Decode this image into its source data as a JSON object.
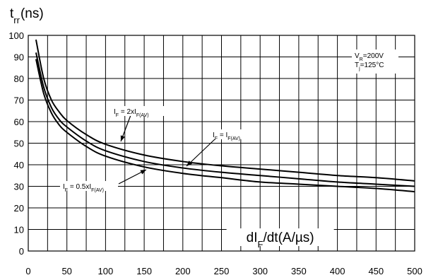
{
  "chart_data": {
    "type": "line",
    "title": "t",
    "title_sub": "rr",
    "title_unit": "(ns)",
    "xlabel": {
      "pre": "dI",
      "sub": "F",
      "post": "/dt(A/µs)"
    },
    "xlim": [
      0,
      500
    ],
    "ylim": [
      0,
      100
    ],
    "x_ticks": [
      "0",
      "50",
      "100",
      "150",
      "200",
      "250",
      "300",
      "350",
      "400",
      "450",
      "500"
    ],
    "y_ticks": [
      "0",
      "10",
      "20",
      "30",
      "40",
      "50",
      "60",
      "70",
      "80",
      "90",
      "100"
    ],
    "grid": true,
    "conditions": [
      {
        "pre": "V",
        "sub": "R",
        "post": "=200V"
      },
      {
        "pre": "T",
        "sub": "j",
        "post": "=125°C"
      }
    ],
    "series": [
      {
        "label": {
          "pre": "I",
          "sub1": "F",
          "mid": " = 2xI",
          "sub2": "F(AV)"
        },
        "x": [
          10,
          20,
          30,
          40,
          50,
          75,
          100,
          150,
          200,
          250,
          300,
          350,
          400,
          450,
          500
        ],
        "y": [
          98,
          80,
          70,
          64.5,
          60.5,
          54,
          49.5,
          44.5,
          41.5,
          39.5,
          38,
          36.5,
          35,
          34,
          32.5
        ]
      },
      {
        "label": {
          "pre": "I",
          "sub1": "F",
          "mid": " = I",
          "sub2": "F(AV)"
        },
        "x": [
          10,
          20,
          30,
          40,
          50,
          75,
          100,
          150,
          200,
          250,
          300,
          350,
          400,
          450,
          500
        ],
        "y": [
          92,
          76,
          66.5,
          61,
          57.5,
          51,
          46.5,
          41.5,
          38.5,
          36.5,
          35,
          33.5,
          32,
          31,
          30
        ]
      },
      {
        "label": {
          "pre": "I",
          "sub1": "F",
          "mid": " = 0.5xI",
          "sub2": "F(AV)"
        },
        "x": [
          10,
          20,
          30,
          40,
          50,
          75,
          100,
          150,
          200,
          250,
          300,
          350,
          400,
          450,
          500
        ],
        "y": [
          89,
          73,
          64,
          58.5,
          55,
          48.5,
          44,
          39,
          36,
          34,
          32,
          31,
          30,
          29,
          27.5
        ]
      }
    ]
  }
}
